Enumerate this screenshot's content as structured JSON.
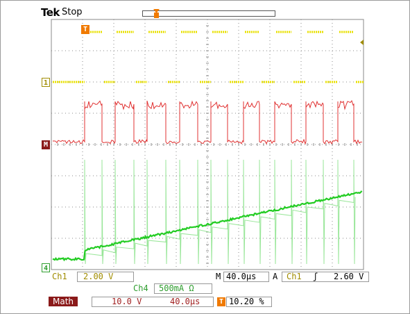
{
  "header": {
    "brand": "Tek",
    "state": "Stop"
  },
  "markers": {
    "ch1": "1",
    "math": "M",
    "ch4": "4",
    "trigger": "T"
  },
  "readout": {
    "ch1_label": "Ch1",
    "ch1_scale": "2.00 V",
    "ch4_label": "Ch4",
    "ch4_scale": "500mA Ω",
    "timebase_label": "M",
    "timebase": "40.0µs",
    "trig_mode": "A",
    "trig_source": "Ch1",
    "trig_slope_glyph": "ʃ",
    "trig_level": "2.60 V",
    "math_label": "Math",
    "math_scale": "10.0 V",
    "math_time": "40.0µs",
    "trig_pos_icon": "T",
    "trig_pos": "10.20 %"
  },
  "colors": {
    "ch1": "#e8e000",
    "math": "#e03030",
    "ch4": "#22cc22",
    "trigger": "#f07a00",
    "grid": "#8a8a8a"
  }
}
